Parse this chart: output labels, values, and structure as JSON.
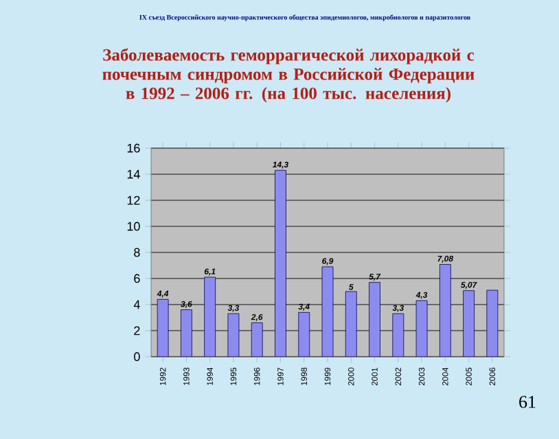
{
  "chart_data": {
    "type": "bar",
    "title": "Заболеваемость геморрагической лихорадкой с почечным синдромом в Российской Федерации в 1992 – 2006 гг. (на 100 тыс. населения)",
    "categories": [
      "1992",
      "1993",
      "1994",
      "1995",
      "1996",
      "1997",
      "1998",
      "1999",
      "2000",
      "2001",
      "2002",
      "2003",
      "2004",
      "2005",
      "2006"
    ],
    "values": [
      4.4,
      3.6,
      6.1,
      3.3,
      2.6,
      14.3,
      3.4,
      6.9,
      5,
      5.7,
      3.3,
      4.3,
      7.08,
      5.07,
      5.1
    ],
    "value_labels": [
      "4,4",
      "3,6",
      "6,1",
      "3,3",
      "2,6",
      "14,3",
      "3,4",
      "6,9",
      "5",
      "5,7",
      "3,3",
      "4,3",
      "7,08",
      "5,07",
      null
    ],
    "color": "#8c8cf0",
    "ylim": [
      0,
      16
    ],
    "yticks": [
      0,
      2,
      4,
      6,
      8,
      10,
      12,
      14,
      16
    ],
    "grid": "y",
    "annotations": [
      "IX съезд Всероссийского научно-практического общества эпидемиологов, микробиологов и паразитологов",
      "61"
    ]
  }
}
